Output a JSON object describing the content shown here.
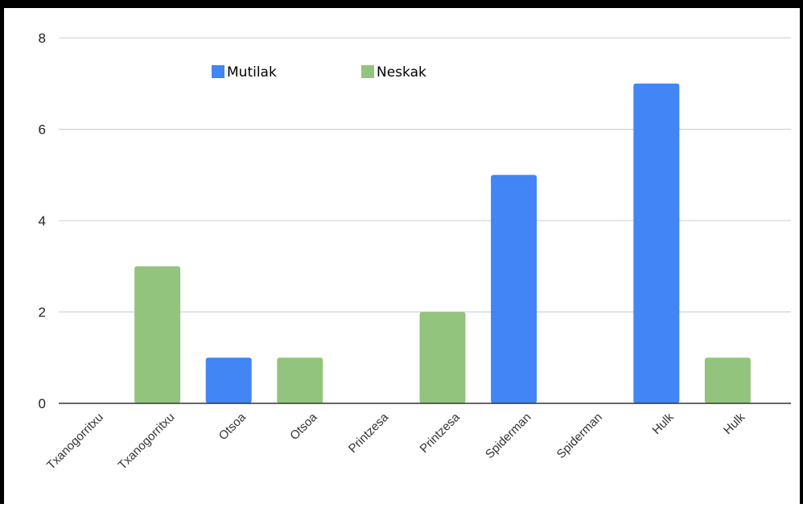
{
  "chart_data": {
    "type": "bar",
    "title": "",
    "xlabel": "",
    "ylabel": "",
    "ylim": [
      0,
      8
    ],
    "yticks": [
      0,
      2,
      4,
      6,
      8
    ],
    "grid": true,
    "legend_position": "top",
    "categories": [
      "Txanogorritxu",
      "Txanogorritxu",
      "Otsoa",
      "Otsoa",
      "Printzesa",
      "Printzesa",
      "Spiderman",
      "Spiderman",
      "Hulk",
      "Hulk"
    ],
    "series": [
      {
        "name": "Mutilak",
        "color": "#4285f4",
        "values": [
          0,
          null,
          1,
          null,
          0,
          null,
          5,
          null,
          7,
          null
        ]
      },
      {
        "name": "Neskak",
        "color": "#93c47d",
        "values": [
          null,
          3,
          null,
          1,
          null,
          2,
          null,
          0,
          null,
          1
        ]
      }
    ]
  }
}
